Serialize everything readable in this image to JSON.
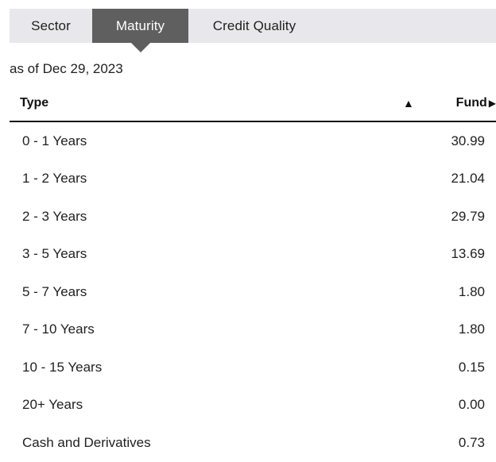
{
  "tabs": [
    {
      "label": "Sector",
      "active": false
    },
    {
      "label": "Maturity",
      "active": true
    },
    {
      "label": "Credit Quality",
      "active": false
    }
  ],
  "as_of": "as of Dec 29, 2023",
  "table": {
    "headers": {
      "type": "Type",
      "sort_glyph": "▲",
      "fund": "Fund",
      "fund_glyph": "▶"
    },
    "rows": [
      {
        "type": "0 - 1 Years",
        "value": "30.99"
      },
      {
        "type": "1 - 2 Years",
        "value": "21.04"
      },
      {
        "type": "2 - 3 Years",
        "value": "29.79"
      },
      {
        "type": "3 - 5 Years",
        "value": "13.69"
      },
      {
        "type": "5 - 7 Years",
        "value": "1.80"
      },
      {
        "type": "7 - 10 Years",
        "value": "1.80"
      },
      {
        "type": "10 - 15 Years",
        "value": "0.15"
      },
      {
        "type": "20+ Years",
        "value": "0.00"
      },
      {
        "type": "Cash and Derivatives",
        "value": "0.73"
      }
    ]
  },
  "colors": {
    "tab_bg": "#e8e8ec",
    "tab_active_bg": "#5f5f5f",
    "header_rule": "#111111"
  }
}
